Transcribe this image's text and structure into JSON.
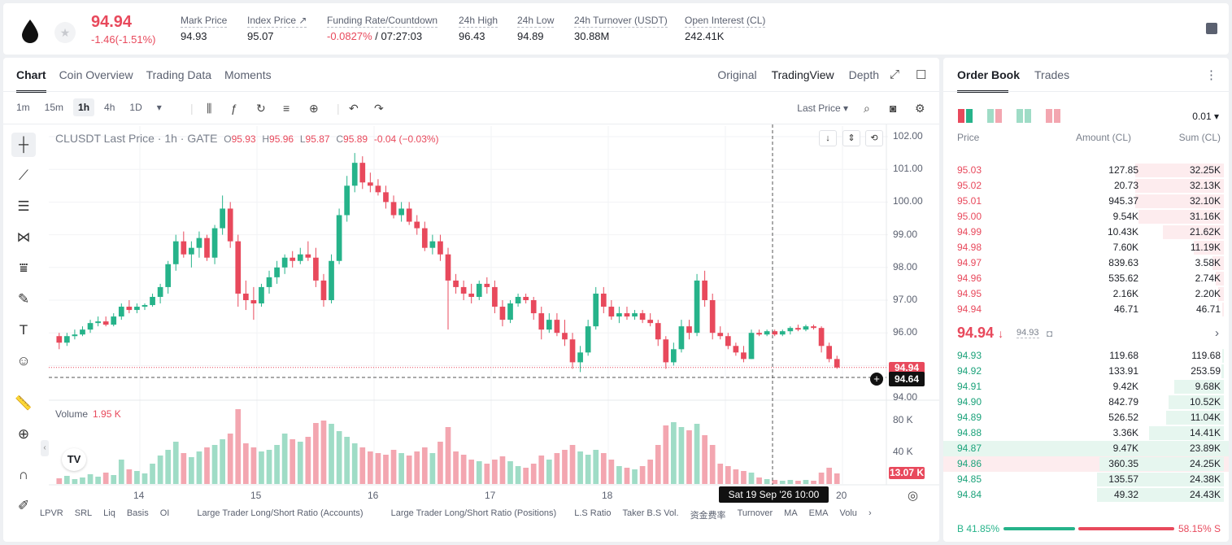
{
  "header": {
    "last_price": "94.94",
    "change": "-1.46(-1.51%)",
    "stats": [
      {
        "label": "Mark Price",
        "value": "94.93"
      },
      {
        "label": "Index Price ↗",
        "value": "95.07"
      },
      {
        "label": "Funding Rate/Countdown",
        "value_neg": "-0.0827%",
        "value": " / 07:27:03"
      },
      {
        "label": "24h High",
        "value": "96.43"
      },
      {
        "label": "24h Low",
        "value": "94.89"
      },
      {
        "label": "24h Turnover (USDT)",
        "value": "30.88M"
      },
      {
        "label": "Open Interest (CL)",
        "value": "242.41K"
      }
    ]
  },
  "chart_tabs": [
    "Chart",
    "Coin Overview",
    "Trading Data",
    "Moments"
  ],
  "view_tabs": [
    "Original",
    "TradingView",
    "Depth"
  ],
  "intervals": [
    "1m",
    "15m",
    "1h",
    "4h",
    "1D"
  ],
  "price_type": "Last Price ▾",
  "legend": {
    "title": "CLUSDT Last Price · 1h · GATE",
    "o_label": "O",
    "o": "95.93",
    "h_label": "H",
    "h": "95.96",
    "l_label": "L",
    "l": "95.87",
    "c_label": "C",
    "c": "95.89",
    "chg": "-0.04 (−0.03%)"
  },
  "volume_legend": {
    "label": "Volume",
    "value": "1.95 K"
  },
  "price_tags": {
    "last": "94.94",
    "cursor": "94.64",
    "volume": "13.07 K"
  },
  "crosshair_date": "Sat 19 Sep '26   10:00",
  "indicators": [
    "LPVR",
    "SRL",
    "Liq",
    "Basis",
    "OI",
    "Large Trader Long/Short Ratio (Accounts)",
    "Large Trader Long/Short Ratio (Positions)",
    "L.S Ratio",
    "Taker B.S Vol.",
    "资金费率",
    "Turnover",
    "MA",
    "EMA",
    "Volu"
  ],
  "chart_data": {
    "type": "candlestick",
    "title": "CLUSDT Last Price · 1h · GATE",
    "y_ticks": [
      "102.00",
      "101.00",
      "100.00",
      "99.00",
      "98.00",
      "97.00",
      "96.00",
      "94.00"
    ],
    "ylim": [
      94.0,
      102.0
    ],
    "x_ticks": [
      "14",
      "15",
      "16",
      "17",
      "18",
      "20"
    ],
    "volume_ticks": [
      "80 K",
      "40 K"
    ],
    "volume_ylim": [
      0,
      100
    ],
    "candles": [
      {
        "o": 95.9,
        "h": 96.0,
        "l": 95.5,
        "c": 95.7,
        "v": 7
      },
      {
        "o": 95.7,
        "h": 96.0,
        "l": 95.6,
        "c": 95.9,
        "v": 10
      },
      {
        "o": 95.9,
        "h": 96.1,
        "l": 95.8,
        "c": 95.95,
        "v": 6
      },
      {
        "o": 95.95,
        "h": 96.2,
        "l": 95.9,
        "c": 96.1,
        "v": 8
      },
      {
        "o": 96.1,
        "h": 96.4,
        "l": 96.0,
        "c": 96.3,
        "v": 12
      },
      {
        "o": 96.3,
        "h": 96.5,
        "l": 96.2,
        "c": 96.35,
        "v": 9
      },
      {
        "o": 96.35,
        "h": 96.5,
        "l": 96.2,
        "c": 96.25,
        "v": 14
      },
      {
        "o": 96.25,
        "h": 96.6,
        "l": 96.2,
        "c": 96.5,
        "v": 11
      },
      {
        "o": 96.5,
        "h": 96.9,
        "l": 96.4,
        "c": 96.8,
        "v": 30
      },
      {
        "o": 96.8,
        "h": 97.0,
        "l": 96.6,
        "c": 96.7,
        "v": 18
      },
      {
        "o": 96.7,
        "h": 96.9,
        "l": 96.6,
        "c": 96.8,
        "v": 16
      },
      {
        "o": 96.8,
        "h": 96.9,
        "l": 96.7,
        "c": 96.85,
        "v": 13
      },
      {
        "o": 96.85,
        "h": 97.2,
        "l": 96.8,
        "c": 97.1,
        "v": 25
      },
      {
        "o": 97.1,
        "h": 97.5,
        "l": 96.9,
        "c": 97.4,
        "v": 35
      },
      {
        "o": 97.4,
        "h": 98.2,
        "l": 97.2,
        "c": 98.1,
        "v": 42
      },
      {
        "o": 98.1,
        "h": 99.0,
        "l": 97.9,
        "c": 98.8,
        "v": 52
      },
      {
        "o": 98.8,
        "h": 99.1,
        "l": 98.3,
        "c": 98.4,
        "v": 38
      },
      {
        "o": 98.4,
        "h": 98.8,
        "l": 98.0,
        "c": 98.6,
        "v": 33
      },
      {
        "o": 98.6,
        "h": 99.1,
        "l": 98.3,
        "c": 98.9,
        "v": 40
      },
      {
        "o": 98.9,
        "h": 99.0,
        "l": 98.2,
        "c": 98.3,
        "v": 45
      },
      {
        "o": 98.3,
        "h": 99.3,
        "l": 98.1,
        "c": 99.2,
        "v": 48
      },
      {
        "o": 99.2,
        "h": 100.2,
        "l": 99.0,
        "c": 99.8,
        "v": 55
      },
      {
        "o": 99.8,
        "h": 100.0,
        "l": 98.6,
        "c": 98.8,
        "v": 62
      },
      {
        "o": 98.8,
        "h": 99.0,
        "l": 96.8,
        "c": 97.2,
        "v": 92
      },
      {
        "o": 97.2,
        "h": 97.6,
        "l": 96.7,
        "c": 97.0,
        "v": 50
      },
      {
        "o": 97.0,
        "h": 97.4,
        "l": 96.4,
        "c": 96.9,
        "v": 45
      },
      {
        "o": 96.9,
        "h": 97.5,
        "l": 96.8,
        "c": 97.4,
        "v": 40
      },
      {
        "o": 97.4,
        "h": 97.9,
        "l": 97.2,
        "c": 97.7,
        "v": 42
      },
      {
        "o": 97.7,
        "h": 98.2,
        "l": 97.5,
        "c": 98.0,
        "v": 48
      },
      {
        "o": 98.0,
        "h": 98.4,
        "l": 97.8,
        "c": 98.3,
        "v": 62
      },
      {
        "o": 98.3,
        "h": 98.5,
        "l": 98.0,
        "c": 98.2,
        "v": 55
      },
      {
        "o": 98.2,
        "h": 98.6,
        "l": 98.1,
        "c": 98.4,
        "v": 52
      },
      {
        "o": 98.4,
        "h": 98.8,
        "l": 98.2,
        "c": 98.3,
        "v": 58
      },
      {
        "o": 98.3,
        "h": 98.6,
        "l": 97.4,
        "c": 97.6,
        "v": 75
      },
      {
        "o": 97.6,
        "h": 97.8,
        "l": 96.8,
        "c": 97.0,
        "v": 78
      },
      {
        "o": 97.0,
        "h": 98.4,
        "l": 96.9,
        "c": 98.2,
        "v": 74
      },
      {
        "o": 98.2,
        "h": 99.8,
        "l": 98.1,
        "c": 99.6,
        "v": 65
      },
      {
        "o": 99.6,
        "h": 100.8,
        "l": 99.4,
        "c": 100.5,
        "v": 58
      },
      {
        "o": 100.5,
        "h": 101.5,
        "l": 100.3,
        "c": 101.2,
        "v": 50
      },
      {
        "o": 101.2,
        "h": 101.4,
        "l": 100.4,
        "c": 100.6,
        "v": 45
      },
      {
        "o": 100.6,
        "h": 100.9,
        "l": 100.3,
        "c": 100.5,
        "v": 40
      },
      {
        "o": 100.5,
        "h": 100.7,
        "l": 100.2,
        "c": 100.3,
        "v": 38
      },
      {
        "o": 100.3,
        "h": 100.5,
        "l": 99.8,
        "c": 100.0,
        "v": 36
      },
      {
        "o": 100.0,
        "h": 100.2,
        "l": 99.5,
        "c": 99.6,
        "v": 42
      },
      {
        "o": 99.6,
        "h": 100.0,
        "l": 99.4,
        "c": 99.8,
        "v": 38
      },
      {
        "o": 99.8,
        "h": 100.0,
        "l": 99.3,
        "c": 99.4,
        "v": 35
      },
      {
        "o": 99.4,
        "h": 99.6,
        "l": 99.0,
        "c": 99.2,
        "v": 40
      },
      {
        "o": 99.2,
        "h": 99.4,
        "l": 98.5,
        "c": 98.6,
        "v": 45
      },
      {
        "o": 98.6,
        "h": 99.0,
        "l": 98.4,
        "c": 98.8,
        "v": 38
      },
      {
        "o": 98.8,
        "h": 99.0,
        "l": 98.2,
        "c": 98.4,
        "v": 52
      },
      {
        "o": 98.4,
        "h": 98.6,
        "l": 96.1,
        "c": 97.6,
        "v": 70
      },
      {
        "o": 97.6,
        "h": 97.8,
        "l": 97.2,
        "c": 97.4,
        "v": 40
      },
      {
        "o": 97.4,
        "h": 97.6,
        "l": 97.0,
        "c": 97.2,
        "v": 36
      },
      {
        "o": 97.2,
        "h": 97.5,
        "l": 96.9,
        "c": 97.1,
        "v": 30
      },
      {
        "o": 97.1,
        "h": 97.6,
        "l": 97.0,
        "c": 97.5,
        "v": 28
      },
      {
        "o": 97.5,
        "h": 97.7,
        "l": 97.2,
        "c": 97.4,
        "v": 25
      },
      {
        "o": 97.4,
        "h": 97.6,
        "l": 96.6,
        "c": 96.8,
        "v": 30
      },
      {
        "o": 96.8,
        "h": 97.0,
        "l": 96.2,
        "c": 96.4,
        "v": 34
      },
      {
        "o": 96.4,
        "h": 97.0,
        "l": 96.3,
        "c": 96.9,
        "v": 28
      },
      {
        "o": 96.9,
        "h": 97.2,
        "l": 96.8,
        "c": 97.1,
        "v": 22
      },
      {
        "o": 97.1,
        "h": 97.2,
        "l": 96.9,
        "c": 97.0,
        "v": 20
      },
      {
        "o": 97.0,
        "h": 97.1,
        "l": 96.4,
        "c": 96.6,
        "v": 25
      },
      {
        "o": 96.6,
        "h": 96.8,
        "l": 95.8,
        "c": 96.1,
        "v": 35
      },
      {
        "o": 96.1,
        "h": 96.6,
        "l": 96.0,
        "c": 96.4,
        "v": 30
      },
      {
        "o": 96.4,
        "h": 96.6,
        "l": 95.9,
        "c": 96.0,
        "v": 38
      },
      {
        "o": 96.0,
        "h": 96.4,
        "l": 95.6,
        "c": 95.8,
        "v": 42
      },
      {
        "o": 95.8,
        "h": 96.0,
        "l": 94.9,
        "c": 95.1,
        "v": 48
      },
      {
        "o": 95.1,
        "h": 95.6,
        "l": 94.8,
        "c": 95.4,
        "v": 40
      },
      {
        "o": 95.4,
        "h": 96.4,
        "l": 95.3,
        "c": 96.2,
        "v": 36
      },
      {
        "o": 96.2,
        "h": 97.4,
        "l": 96.1,
        "c": 97.2,
        "v": 42
      },
      {
        "o": 97.2,
        "h": 97.4,
        "l": 96.6,
        "c": 96.8,
        "v": 38
      },
      {
        "o": 96.8,
        "h": 97.0,
        "l": 96.4,
        "c": 96.5,
        "v": 30
      },
      {
        "o": 96.5,
        "h": 96.8,
        "l": 96.3,
        "c": 96.6,
        "v": 22
      },
      {
        "o": 96.6,
        "h": 96.8,
        "l": 96.4,
        "c": 96.5,
        "v": 20
      },
      {
        "o": 96.5,
        "h": 96.7,
        "l": 96.4,
        "c": 96.6,
        "v": 18
      },
      {
        "o": 96.6,
        "h": 96.7,
        "l": 96.3,
        "c": 96.4,
        "v": 22
      },
      {
        "o": 96.4,
        "h": 96.6,
        "l": 96.2,
        "c": 96.3,
        "v": 30
      },
      {
        "o": 96.3,
        "h": 96.4,
        "l": 95.6,
        "c": 95.8,
        "v": 48
      },
      {
        "o": 95.8,
        "h": 95.9,
        "l": 94.9,
        "c": 95.1,
        "v": 72
      },
      {
        "o": 95.1,
        "h": 95.7,
        "l": 95.0,
        "c": 95.5,
        "v": 76
      },
      {
        "o": 95.5,
        "h": 96.4,
        "l": 95.4,
        "c": 96.2,
        "v": 70
      },
      {
        "o": 96.2,
        "h": 96.4,
        "l": 95.8,
        "c": 96.0,
        "v": 66
      },
      {
        "o": 96.0,
        "h": 97.8,
        "l": 95.9,
        "c": 97.6,
        "v": 74
      },
      {
        "o": 97.6,
        "h": 97.9,
        "l": 96.8,
        "c": 97.0,
        "v": 60
      },
      {
        "o": 97.0,
        "h": 97.2,
        "l": 95.8,
        "c": 96.0,
        "v": 48
      },
      {
        "o": 96.0,
        "h": 96.2,
        "l": 95.8,
        "c": 95.9,
        "v": 25
      },
      {
        "o": 95.9,
        "h": 96.0,
        "l": 95.5,
        "c": 95.6,
        "v": 22
      },
      {
        "o": 95.6,
        "h": 95.7,
        "l": 95.3,
        "c": 95.4,
        "v": 18
      },
      {
        "o": 95.4,
        "h": 95.6,
        "l": 95.1,
        "c": 95.2,
        "v": 16
      },
      {
        "o": 95.2,
        "h": 96.1,
        "l": 95.2,
        "c": 96.0,
        "v": 14
      },
      {
        "o": 96.0,
        "h": 96.1,
        "l": 95.9,
        "c": 95.95,
        "v": 8
      },
      {
        "o": 95.95,
        "h": 96.1,
        "l": 95.9,
        "c": 96.05,
        "v": 6
      },
      {
        "o": 96.05,
        "h": 96.1,
        "l": 95.9,
        "c": 95.95,
        "v": 5
      },
      {
        "o": 95.95,
        "h": 96.1,
        "l": 95.9,
        "c": 96.05,
        "v": 4
      },
      {
        "o": 96.05,
        "h": 96.2,
        "l": 95.95,
        "c": 96.15,
        "v": 5
      },
      {
        "o": 96.15,
        "h": 96.25,
        "l": 96.05,
        "c": 96.1,
        "v": 4
      },
      {
        "o": 96.1,
        "h": 96.25,
        "l": 96.05,
        "c": 96.2,
        "v": 5
      },
      {
        "o": 96.2,
        "h": 96.25,
        "l": 96.1,
        "c": 96.15,
        "v": 4
      },
      {
        "o": 96.15,
        "h": 96.2,
        "l": 95.4,
        "c": 95.6,
        "v": 14
      },
      {
        "o": 95.6,
        "h": 95.7,
        "l": 95.1,
        "c": 95.2,
        "v": 20
      },
      {
        "o": 95.2,
        "h": 95.3,
        "l": 94.9,
        "c": 94.94,
        "v": 13
      }
    ]
  },
  "order_book": {
    "tabs": [
      "Order Book",
      "Trades"
    ],
    "precision": "0.01 ▾",
    "headers": [
      "Price",
      "Amount (CL)",
      "Sum (CL)"
    ],
    "asks": [
      {
        "price": "95.03",
        "amount": "127.85",
        "sum": "32.25K",
        "depth": 0.32
      },
      {
        "price": "95.02",
        "amount": "20.73",
        "sum": "32.13K",
        "depth": 0.32
      },
      {
        "price": "95.01",
        "amount": "945.37",
        "sum": "32.10K",
        "depth": 0.32
      },
      {
        "price": "95.00",
        "amount": "9.54K",
        "sum": "31.16K",
        "depth": 0.31
      },
      {
        "price": "94.99",
        "amount": "10.43K",
        "sum": "21.62K",
        "depth": 0.22
      },
      {
        "price": "94.98",
        "amount": "7.60K",
        "sum": "11.19K",
        "depth": 0.11
      },
      {
        "price": "94.97",
        "amount": "839.63",
        "sum": "3.58K",
        "depth": 0.04
      },
      {
        "price": "94.96",
        "amount": "535.62",
        "sum": "2.74K",
        "depth": 0.03
      },
      {
        "price": "94.95",
        "amount": "2.16K",
        "sum": "2.20K",
        "depth": 0.02
      },
      {
        "price": "94.94",
        "amount": "46.71",
        "sum": "46.71",
        "depth": 0.005
      }
    ],
    "mid_price": "94.94",
    "mark_price": "94.93",
    "bids": [
      {
        "price": "94.93",
        "amount": "119.68",
        "sum": "119.68",
        "depth": 0.005
      },
      {
        "price": "94.92",
        "amount": "133.91",
        "sum": "253.59",
        "depth": 0.01
      },
      {
        "price": "94.91",
        "amount": "9.42K",
        "sum": "9.68K",
        "depth": 0.18
      },
      {
        "price": "94.90",
        "amount": "842.79",
        "sum": "10.52K",
        "depth": 0.2
      },
      {
        "price": "94.89",
        "amount": "526.52",
        "sum": "11.04K",
        "depth": 0.21
      },
      {
        "price": "94.88",
        "amount": "3.36K",
        "sum": "14.41K",
        "depth": 0.27
      },
      {
        "price": "94.87",
        "amount": "9.47K",
        "sum": "23.89K",
        "depth": 0.45
      },
      {
        "price": "94.86",
        "amount": "360.35",
        "sum": "24.25K",
        "depth": 0.45
      },
      {
        "price": "94.85",
        "amount": "135.57",
        "sum": "24.38K",
        "depth": 0.46
      },
      {
        "price": "94.84",
        "amount": "49.32",
        "sum": "24.43K",
        "depth": 0.46
      }
    ],
    "buy_ratio": "B 41.85%",
    "sell_ratio": "58.15% S",
    "buy_fraction": 0.4185
  },
  "colors": {
    "up": "#26b38a",
    "down": "#e8495c",
    "up_vol": "#9fdcc6",
    "down_vol": "#f3a6b0"
  }
}
